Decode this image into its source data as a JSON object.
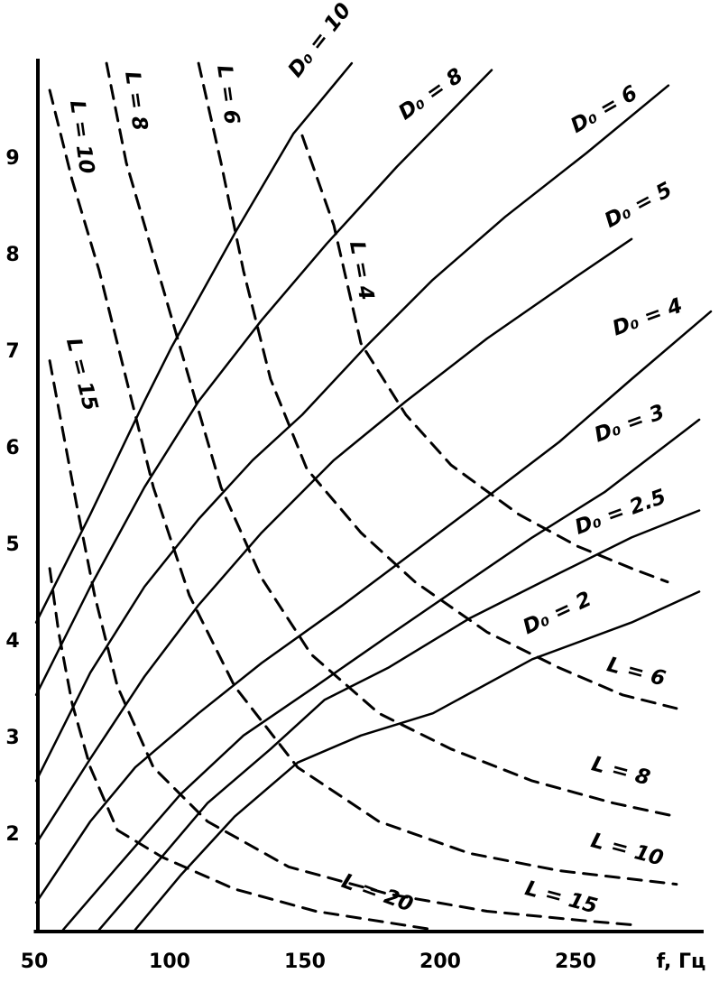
{
  "chart_data": {
    "type": "line",
    "x_label": "f, Гц",
    "xlim": [
      50,
      300
    ],
    "ylim": [
      1,
      10
    ],
    "xticks": [
      50,
      100,
      150,
      200,
      250
    ],
    "yticks": [
      2,
      3,
      4,
      5,
      6,
      7,
      8,
      9
    ],
    "series": [
      {
        "name": "D₀ = 10",
        "color": "#000000",
        "style": "solid",
        "x": [
          50.7,
          70.7,
          90.7,
          100.7,
          124.7,
          145.7,
          167.3
        ],
        "values": [
          4.2,
          5.32,
          6.49,
          7.05,
          8.26,
          9.26,
          9.99
        ]
      },
      {
        "name": "D₀ = 8",
        "color": "#000000",
        "style": "solid",
        "x": [
          50.7,
          70.7,
          90.7,
          110.7,
          134,
          158,
          184,
          219
        ],
        "values": [
          3.45,
          4.57,
          5.6,
          6.49,
          7.33,
          8.12,
          8.92,
          9.92
        ]
      },
      {
        "name": "D₀ = 6",
        "color": "#000000",
        "style": "solid",
        "x": [
          50.7,
          70.7,
          90.7,
          110.7,
          130.7,
          149,
          172.3,
          197.3,
          224,
          254,
          284.3
        ],
        "values": [
          2.56,
          3.68,
          4.57,
          5.27,
          5.88,
          6.35,
          7.05,
          7.75,
          8.4,
          9.06,
          9.76
        ]
      },
      {
        "name": "D₀ = 5",
        "color": "#000000",
        "style": "solid",
        "x": [
          50.7,
          70.7,
          90.7,
          110.7,
          134,
          160.7,
          187.3,
          217.3,
          250.7,
          270.7
        ],
        "values": [
          1.91,
          2.79,
          3.64,
          4.38,
          5.13,
          5.88,
          6.49,
          7.14,
          7.79,
          8.17
        ]
      },
      {
        "name": "D₀ = 4",
        "color": "#000000",
        "style": "solid",
        "x": [
          50.7,
          70.7,
          87.3,
          110.7,
          134,
          164,
          190.7,
          217.3,
          244,
          270.7,
          300
        ],
        "values": [
          1.3,
          2.14,
          2.7,
          3.26,
          3.78,
          4.38,
          4.94,
          5.5,
          6.07,
          6.72,
          7.42
        ]
      },
      {
        "name": "D₀ = 3",
        "color": "#000000",
        "style": "solid",
        "x": [
          60.7,
          80.7,
          104,
          127.3,
          154,
          180.7,
          207.3,
          234,
          260.7,
          295.7
        ],
        "values": [
          1.02,
          1.67,
          2.42,
          3.03,
          3.54,
          4.06,
          4.57,
          5.08,
          5.55,
          6.3
        ]
      },
      {
        "name": "D₀ = 2.5",
        "color": "#000000",
        "style": "solid",
        "x": [
          74,
          94,
          114,
          137.3,
          157.3,
          180.7,
          210.7,
          244,
          270.7,
          295.7
        ],
        "values": [
          1.02,
          1.67,
          2.33,
          2.89,
          3.4,
          3.73,
          4.24,
          4.71,
          5.08,
          5.36
        ]
      },
      {
        "name": "D₀ = 2",
        "color": "#000000",
        "style": "solid",
        "x": [
          87.3,
          104,
          124,
          147.3,
          170.7,
          197.3,
          234,
          270.7,
          295.7
        ],
        "values": [
          1.02,
          1.58,
          2.19,
          2.75,
          3.03,
          3.26,
          3.82,
          4.2,
          4.52
        ]
      },
      {
        "name": "L = 4",
        "color": "#000000",
        "style": "dashed",
        "x": [
          149,
          160.7,
          170.7,
          187.3,
          204,
          229,
          250.7,
          270.7,
          284
        ],
        "values": [
          9.24,
          8.31,
          7.09,
          6.35,
          5.83,
          5.32,
          4.99,
          4.76,
          4.62
        ]
      },
      {
        "name": "L = 6",
        "color": "#000000",
        "style": "dashed",
        "x": [
          110.7,
          119,
          127.3,
          137.3,
          150.7,
          170.7,
          190.7,
          217.3,
          244,
          267.3,
          287.3
        ],
        "values": [
          9.99,
          8.96,
          7.84,
          6.72,
          5.79,
          5.13,
          4.62,
          4.1,
          3.73,
          3.45,
          3.31
        ]
      },
      {
        "name": "L = 8",
        "color": "#000000",
        "style": "dashed",
        "x": [
          76.7,
          84,
          95.7,
          107.3,
          119,
          134,
          152.3,
          177.3,
          204,
          234,
          264,
          287.3
        ],
        "values": [
          9.99,
          8.96,
          7.84,
          6.72,
          5.6,
          4.66,
          3.87,
          3.26,
          2.89,
          2.56,
          2.33,
          2.19
        ]
      },
      {
        "name": "L = 10",
        "color": "#000000",
        "style": "dashed",
        "x": [
          55.7,
          64,
          74,
          84,
          94,
          107.3,
          124,
          147.3,
          177.3,
          210.7,
          244,
          287.3
        ],
        "values": [
          9.71,
          8.78,
          7.84,
          6.72,
          5.6,
          4.48,
          3.54,
          2.7,
          2.14,
          1.81,
          1.63,
          1.49
        ]
      },
      {
        "name": "L = 15",
        "color": "#000000",
        "style": "dashed",
        "x": [
          55.7,
          60.7,
          65.7,
          72.3,
          80.7,
          94,
          114,
          144,
          180.7,
          217.3,
          254,
          270.7
        ],
        "values": [
          6.91,
          6.16,
          5.41,
          4.48,
          3.54,
          2.7,
          2.14,
          1.67,
          1.39,
          1.21,
          1.11,
          1.07
        ]
      },
      {
        "name": "L = 20",
        "color": "#000000",
        "style": "dashed",
        "x": [
          55.7,
          59,
          64,
          70.7,
          80.7,
          97.3,
          124,
          154,
          197.3
        ],
        "values": [
          4.76,
          4.1,
          3.36,
          2.7,
          2.05,
          1.77,
          1.44,
          1.21,
          1.02
        ]
      }
    ]
  }
}
